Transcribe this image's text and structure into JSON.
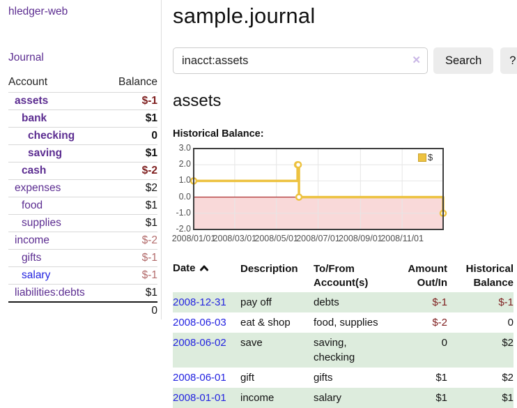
{
  "app": {
    "title": "hledger-web"
  },
  "sidebar": {
    "journal_link": "Journal",
    "accounts_table": {
      "headers": {
        "account": "Account",
        "balance": "Balance"
      },
      "rows": [
        {
          "name": "assets",
          "level": 1,
          "bold": true,
          "link_color": "purple",
          "balance": "$-1"
        },
        {
          "name": "bank",
          "level": 2,
          "bold": true,
          "link_color": "purple",
          "balance": "$1"
        },
        {
          "name": "checking",
          "level": 3,
          "bold": true,
          "link_color": "purple",
          "balance": "0"
        },
        {
          "name": "saving",
          "level": 3,
          "bold": true,
          "link_color": "purple",
          "balance": "$1"
        },
        {
          "name": "cash",
          "level": 2,
          "bold": true,
          "link_color": "purple",
          "balance": "$-2"
        },
        {
          "name": "expenses",
          "level": 1,
          "bold": false,
          "link_color": "purple",
          "balance": "$2"
        },
        {
          "name": "food",
          "level": 2,
          "bold": false,
          "link_color": "purple",
          "balance": "$1"
        },
        {
          "name": "supplies",
          "level": 2,
          "bold": false,
          "link_color": "purple",
          "balance": "$1"
        },
        {
          "name": "income",
          "level": 1,
          "bold": false,
          "link_color": "purple",
          "balance": "$-2"
        },
        {
          "name": "gifts",
          "level": 2,
          "bold": false,
          "link_color": "purple",
          "balance": "$-1"
        },
        {
          "name": "salary",
          "level": 2,
          "bold": false,
          "link_color": "blue",
          "balance": "$-1"
        },
        {
          "name": "liabilities:debts",
          "level": 1,
          "bold": false,
          "link_color": "purple",
          "balance": "$1"
        }
      ],
      "total": "0"
    }
  },
  "main": {
    "title": "sample.journal",
    "search": {
      "value": "inacct:assets",
      "clear_icon": "✕",
      "button_label": "Search",
      "help_label": "?"
    },
    "account_heading": "assets",
    "chart_heading": "Historical Balance:"
  },
  "chart_data": {
    "type": "line",
    "step": true,
    "title": "Historical Balance",
    "series": [
      {
        "name": "$",
        "color": "#edc240",
        "points": [
          [
            "2008-01-01",
            1
          ],
          [
            "2008-06-01",
            2
          ],
          [
            "2008-06-02",
            2
          ],
          [
            "2008-06-03",
            0
          ],
          [
            "2008-12-31",
            -1
          ]
        ]
      }
    ],
    "xlim": [
      "2008-01-01",
      "2008-12-31"
    ],
    "ylim": [
      -2,
      3
    ],
    "y_ticks": [
      {
        "value": 3,
        "label": "3.0"
      },
      {
        "value": 2,
        "label": "2.0"
      },
      {
        "value": 1,
        "label": "1.0"
      },
      {
        "value": 0,
        "label": "0.0"
      },
      {
        "value": -1,
        "label": "-1.0"
      },
      {
        "value": -2,
        "label": "-2.0"
      }
    ],
    "x_ticks": [
      {
        "value": "2008-01-01",
        "label": "2008/01/01"
      },
      {
        "value": "2008-03-01",
        "label": "2008/03/01"
      },
      {
        "value": "2008-05-01",
        "label": "2008/05/01"
      },
      {
        "value": "2008-07-01",
        "label": "2008/07/01"
      },
      {
        "value": "2008-09-01",
        "label": "2008/09/01"
      },
      {
        "value": "2008-11-01",
        "label": "2008/11/01"
      }
    ],
    "grid": true,
    "legend_position": "top-right",
    "negative_region_color": "#f9d9d9",
    "zero_line_color": "#990000"
  },
  "register_table": {
    "headers": {
      "date": "Date",
      "description": "Description",
      "account_line1": "To/From",
      "account_line2": "Account(s)",
      "amount_line1": "Amount",
      "amount_line2": "Out/In",
      "balance_line1": "Historical",
      "balance_line2": "Balance"
    },
    "rows": [
      {
        "date": "2008-12-31",
        "description": "pay off",
        "accounts": "debts",
        "amount": "$-1",
        "balance": "$-1"
      },
      {
        "date": "2008-06-03",
        "description": "eat & shop",
        "accounts": "food, supplies",
        "amount": "$-2",
        "balance": "0"
      },
      {
        "date": "2008-06-02",
        "description": "save",
        "accounts": "saving, checking",
        "amount": "0",
        "balance": "$2"
      },
      {
        "date": "2008-06-01",
        "description": "gift",
        "accounts": "gifts",
        "amount": "$1",
        "balance": "$2"
      },
      {
        "date": "2008-01-01",
        "description": "income",
        "accounts": "salary",
        "amount": "$1",
        "balance": "$1"
      }
    ]
  },
  "colors": {
    "link_purple": "#5c2d91",
    "link_blue": "#2323e0",
    "negative_strong": "#7e1e1e",
    "negative_soft": "#b26a6a",
    "row_green": "#ddecdd",
    "series_gold": "#edc240"
  }
}
